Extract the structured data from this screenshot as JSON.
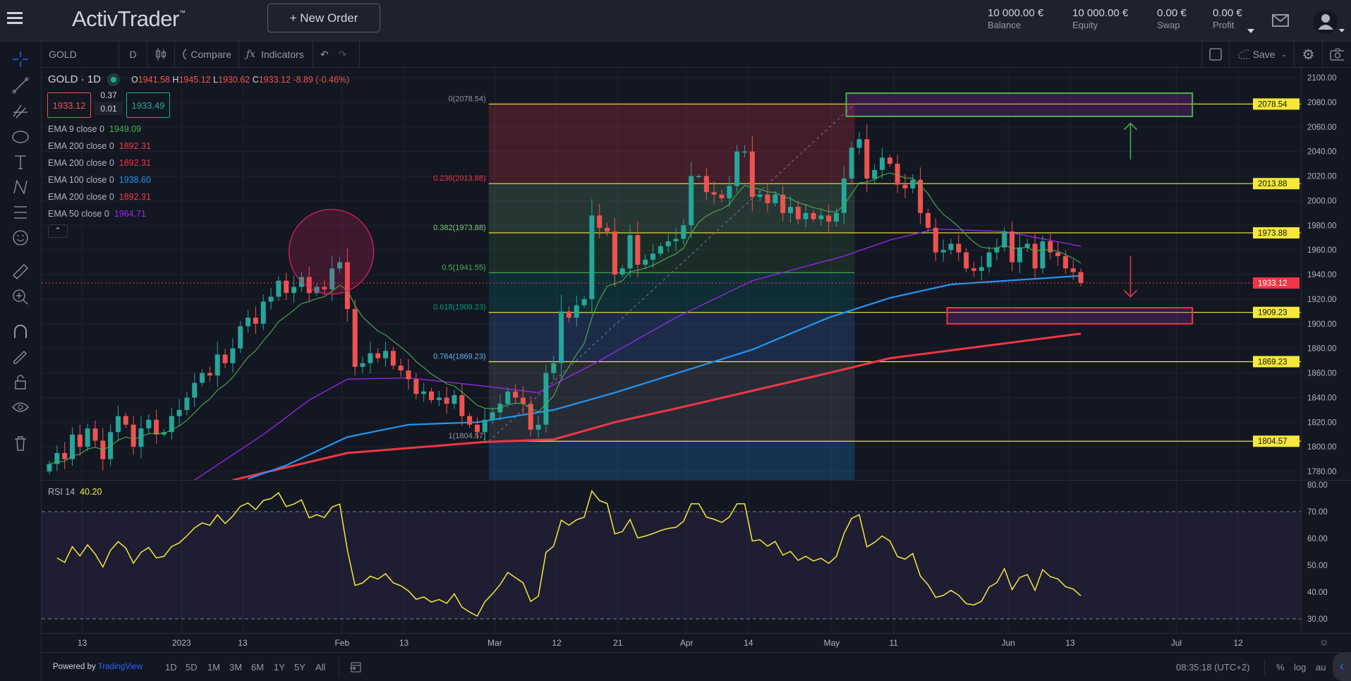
{
  "header": {
    "logo": "ActivTrader",
    "trademark": "™",
    "new_order_label": "+  New Order",
    "stats": [
      {
        "value": "10 000.00 €",
        "label": "Balance"
      },
      {
        "value": "10 000.00 €",
        "label": "Equity"
      },
      {
        "value": "0.00 €",
        "label": "Swap"
      },
      {
        "value": "0.00 €",
        "label": "Profit"
      }
    ]
  },
  "toolbar": {
    "symbol": "GOLD",
    "interval": "D",
    "compare_label": "Compare",
    "indicators_label": "Indicators",
    "save_label": "Save"
  },
  "legend": {
    "title": "GOLD · 1D",
    "o_label": "O",
    "open": "1941.58",
    "h_label": "H",
    "high": "1945.12",
    "l_label": "L",
    "low": "1930.62",
    "c_label": "C",
    "close": "1933.12",
    "change": "-8.89 (-0.46%)",
    "sell_price": "1933.12",
    "spread_top": "0.37",
    "spread_bottom": "0.01",
    "buy_price": "1933.49",
    "indicators": [
      {
        "label": "EMA 9 close 0",
        "value": "1949.09",
        "color": "#4caf50"
      },
      {
        "label": "EMA 200 close 0",
        "value": "1892.31",
        "color": "#f23645"
      },
      {
        "label": "EMA 200 close 0",
        "value": "1892.31",
        "color": "#f23645"
      },
      {
        "label": "EMA 100 close 0",
        "value": "1938.60",
        "color": "#2196f3"
      },
      {
        "label": "EMA 200 close 0",
        "value": "1892.31",
        "color": "#f23645"
      },
      {
        "label": "EMA 50 close 0",
        "value": "1964.71",
        "color": "#9c27f0"
      }
    ]
  },
  "chart_data": {
    "type": "candlestick",
    "symbol": "GOLD",
    "interval": "1D",
    "colors": {
      "up": "#26a69a",
      "down": "#ef5350",
      "ema9": "#4caf50",
      "ema50": "#9c27f0",
      "ema100": "#2196f3",
      "ema200": "#f23645",
      "rsi": "#f5e839"
    },
    "closes": [
      1786,
      1795,
      1790,
      1810,
      1800,
      1815,
      1805,
      1790,
      1812,
      1825,
      1818,
      1800,
      1815,
      1822,
      1810,
      1812,
      1825,
      1830,
      1840,
      1852,
      1860,
      1858,
      1875,
      1868,
      1880,
      1898,
      1905,
      1900,
      1918,
      1922,
      1935,
      1925,
      1930,
      1938,
      1925,
      1930,
      1928,
      1945,
      1950,
      1912,
      1865,
      1868,
      1876,
      1872,
      1878,
      1866,
      1862,
      1855,
      1843,
      1845,
      1838,
      1840,
      1835,
      1842,
      1825,
      1818,
      1812,
      1822,
      1828,
      1835,
      1845,
      1840,
      1835,
      1814,
      1818,
      1860,
      1868,
      1910,
      1905,
      1915,
      1920,
      1988,
      1978,
      1975,
      1940,
      1945,
      1972,
      1948,
      1952,
      1957,
      1963,
      1967,
      1969,
      1980,
      2020,
      2020,
      2007,
      2005,
      2002,
      2012,
      2040,
      2040,
      2003,
      2005,
      1998,
      2005,
      1990,
      1995,
      1985,
      1990,
      1985,
      1988,
      1983,
      1990,
      2018,
      2043,
      2050,
      2018,
      2025,
      2035,
      2030,
      2013,
      2010,
      2017,
      1990,
      1978,
      1958,
      1960,
      1965,
      1958,
      1945,
      1943,
      1946,
      1958,
      1962,
      1975,
      1950,
      1962,
      1965,
      1945,
      1967,
      1958,
      1955,
      1945,
      1942,
      1933.12
    ],
    "ema50": [
      [
        19,
        1773
      ],
      [
        28,
        1810
      ],
      [
        34,
        1838
      ],
      [
        39,
        1855
      ],
      [
        47,
        1856
      ],
      [
        56,
        1850
      ],
      [
        64,
        1844
      ],
      [
        72,
        1870
      ],
      [
        82,
        1905
      ],
      [
        92,
        1935
      ],
      [
        104,
        1955
      ],
      [
        110,
        1968
      ],
      [
        116,
        1977
      ],
      [
        125,
        1975
      ],
      [
        135,
        1963
      ]
    ],
    "ema100": [
      [
        26,
        1774
      ],
      [
        31,
        1785
      ],
      [
        39,
        1808
      ],
      [
        47,
        1818
      ],
      [
        56,
        1820
      ],
      [
        66,
        1830
      ],
      [
        74,
        1844
      ],
      [
        92,
        1879
      ],
      [
        102,
        1905
      ],
      [
        110,
        1921
      ],
      [
        118,
        1932
      ],
      [
        135,
        1939
      ]
    ],
    "ema200": [
      [
        24,
        1773
      ],
      [
        39,
        1795
      ],
      [
        57,
        1804
      ],
      [
        66,
        1806
      ],
      [
        74,
        1820
      ],
      [
        84,
        1834
      ],
      [
        102,
        1860
      ],
      [
        110,
        1872
      ],
      [
        135,
        1892
      ]
    ],
    "price_axis": {
      "min": 1780,
      "max": 2100,
      "step": 20,
      "ticks": [
        "2100.00",
        "2080.00",
        "2060.00",
        "2040.00",
        "2020.00",
        "2000.00",
        "1980.00",
        "1960.00",
        "1940.00",
        "1920.00",
        "1900.00",
        "1880.00",
        "1860.00",
        "1840.00",
        "1820.00",
        "1800.00",
        "1780.00"
      ]
    },
    "current_price": {
      "value": 1933.12,
      "label": "1933.12",
      "color": "#f23645"
    },
    "fib_levels": [
      {
        "ratio": "0",
        "price": 2078.54,
        "label": "0(2078.54)",
        "tag": "2078.54",
        "color": "#9598a1"
      },
      {
        "ratio": "0.236",
        "price": 2013.88,
        "label": "0.236(2013.88)",
        "tag": "2013.88",
        "color": "#f23645"
      },
      {
        "ratio": "0.382",
        "price": 1973.88,
        "label": "0.382(1973.88)",
        "tag": "1973.88",
        "color": "#81c784"
      },
      {
        "ratio": "0.5",
        "price": 1941.55,
        "label": "0.5(1941.55)",
        "tag": "",
        "color": "#4caf50"
      },
      {
        "ratio": "0.618",
        "price": 1909.23,
        "label": "0.618(1909.23)",
        "tag": "1909.23",
        "color": "#089981"
      },
      {
        "ratio": "0.764",
        "price": 1869.23,
        "label": "0.764(1869.23)",
        "tag": "1869.23",
        "color": "#64b5f6"
      },
      {
        "ratio": "1",
        "price": 1804.57,
        "label": "1(1804.57)",
        "tag": "1804.57",
        "color": "#9598a1"
      }
    ],
    "time_labels": [
      "13",
      "2023",
      "13",
      "Feb",
      "13",
      "Mar",
      "12",
      "21",
      "Apr",
      "14",
      "May",
      "11",
      "Jun",
      "13",
      "Jul",
      "12"
    ],
    "rsi": {
      "label": "RSI 14",
      "value": "40.20",
      "period": 14,
      "upper": 70,
      "lower": 30,
      "range": [
        30,
        80
      ],
      "ticks": [
        "80.00",
        "70.00",
        "60.00",
        "50.00",
        "40.00",
        "30.00"
      ]
    }
  },
  "bottombar": {
    "powered_by": "Powered by",
    "brand": "TradingView",
    "ranges": [
      "1D",
      "5D",
      "1M",
      "3M",
      "6M",
      "1Y",
      "5Y",
      "All"
    ],
    "clock": "08:35:18 (UTC+2)",
    "percent": "%",
    "log": "log",
    "auto": "au"
  }
}
